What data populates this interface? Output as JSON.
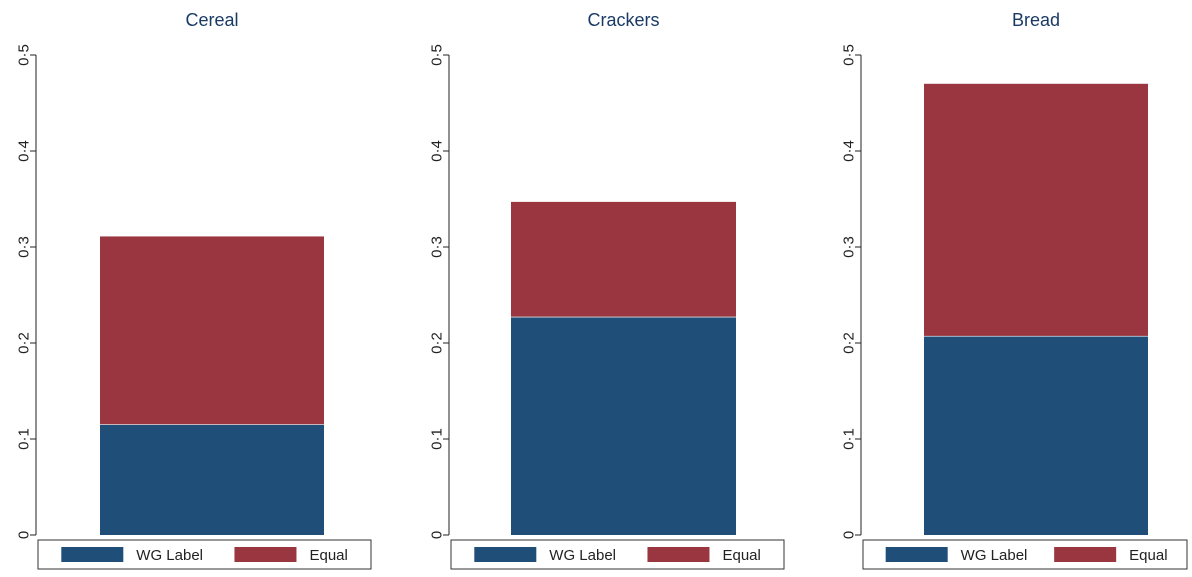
{
  "chart_data": [
    {
      "type": "bar",
      "stacked": true,
      "title": "Cereal",
      "ylim": [
        0,
        0.5
      ],
      "yticks": [
        "0",
        "0·1",
        "0·2",
        "0·3",
        "0·4",
        "0·5"
      ],
      "series": [
        {
          "name": "WG Label",
          "values": [
            0.115
          ],
          "color": "#1f4e79"
        },
        {
          "name": "Equal",
          "values": [
            0.196
          ],
          "color": "#99363f"
        }
      ],
      "legend": "bottom",
      "grid": false
    },
    {
      "type": "bar",
      "stacked": true,
      "title": "Crackers",
      "ylim": [
        0,
        0.5
      ],
      "yticks": [
        "0",
        "0·1",
        "0·2",
        "0·3",
        "0·4",
        "0·5"
      ],
      "series": [
        {
          "name": "WG Label",
          "values": [
            0.227
          ],
          "color": "#1f4e79"
        },
        {
          "name": "Equal",
          "values": [
            0.12
          ],
          "color": "#99363f"
        }
      ],
      "legend": "bottom",
      "grid": false
    },
    {
      "type": "bar",
      "stacked": true,
      "title": "Bread",
      "ylim": [
        0,
        0.5
      ],
      "yticks": [
        "0",
        "0·1",
        "0·2",
        "0·3",
        "0·4",
        "0·5"
      ],
      "series": [
        {
          "name": "WG Label",
          "values": [
            0.207
          ],
          "color": "#1f4e79"
        },
        {
          "name": "Equal",
          "values": [
            0.263
          ],
          "color": "#99363f"
        }
      ],
      "legend": "bottom",
      "grid": false
    }
  ]
}
